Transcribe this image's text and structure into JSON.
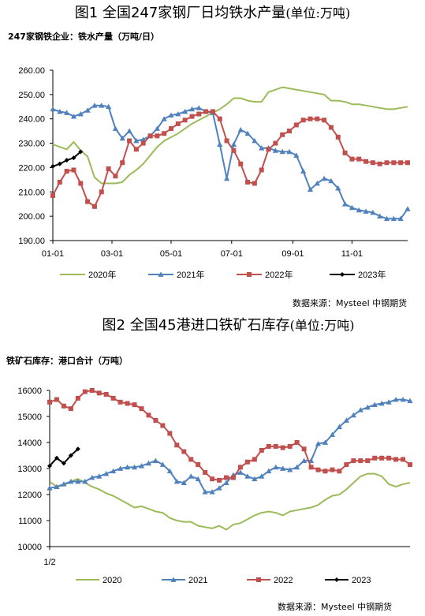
{
  "chart_data": [
    {
      "type": "line",
      "title": "图1 全国247家钢厂日均铁水产量",
      "title_unit": "(单位:万吨)",
      "subtitle": "247家钢铁企业：铁水产量（万吨/日）",
      "source": "数据来源：Mysteel 中钢期货",
      "ylim": [
        190,
        260
      ],
      "ytick_labels": [
        "260.00",
        "250.00",
        "240.00",
        "230.00",
        "220.00",
        "210.00",
        "200.00",
        "190.00"
      ],
      "xtick_labels": [
        "01-01",
        "03-01",
        "05-01",
        "07-01",
        "09-01",
        "11-01"
      ],
      "x_positions_week": [
        0,
        8.5,
        17,
        25.7,
        34.5,
        43
      ],
      "legend_position": "bottom",
      "series": [
        {
          "name": "2020年",
          "color": "#9bbb59",
          "marker": "none",
          "x": [
            0,
            1,
            2,
            3,
            4,
            5,
            6,
            7,
            8,
            9,
            10,
            11,
            12,
            13,
            14,
            15,
            16,
            17,
            18,
            19,
            20,
            21,
            22,
            23,
            24,
            25,
            26,
            27,
            28,
            29,
            30,
            31,
            32,
            33,
            34,
            35,
            36,
            37,
            38,
            39,
            40,
            41,
            42,
            43,
            44,
            45,
            46,
            47,
            48,
            49,
            50,
            51
          ],
          "y": [
            229.5,
            228.5,
            227.5,
            230.5,
            227,
            224.5,
            216,
            213.5,
            213.5,
            213.5,
            214,
            217,
            219,
            221.5,
            225,
            228.5,
            231,
            232.5,
            234,
            236,
            238,
            239.5,
            241,
            242.5,
            244,
            246,
            248.5,
            248.5,
            247.5,
            247,
            247,
            251,
            252,
            253,
            252.5,
            252,
            251.5,
            251,
            250.5,
            250,
            247.5,
            247.5,
            247,
            246,
            246,
            245.5,
            245,
            244.5,
            244,
            244,
            244.5,
            245
          ]
        },
        {
          "name": "2021年",
          "color": "#4f81bd",
          "marker": "triangle",
          "x": [
            0,
            1,
            2,
            3,
            4,
            5,
            6,
            7,
            8,
            9,
            10,
            11,
            12,
            13,
            14,
            15,
            16,
            17,
            18,
            19,
            20,
            21,
            22,
            23,
            24,
            25,
            26,
            27,
            28,
            29,
            30,
            31,
            32,
            33,
            34,
            35,
            36,
            37,
            38,
            39,
            40,
            41,
            42,
            43,
            44,
            45,
            46,
            47,
            48,
            49,
            50,
            51
          ],
          "y": [
            244,
            243,
            242.5,
            241,
            242,
            243.5,
            245.5,
            245.5,
            245,
            236,
            232,
            235,
            231,
            231.5,
            233,
            236,
            240,
            241.5,
            242,
            243,
            244,
            244.5,
            243,
            242.5,
            229.5,
            215.5,
            229.5,
            235.5,
            234,
            231,
            228,
            228,
            227,
            226.5,
            226.5,
            225,
            218.5,
            211,
            213.5,
            215.5,
            214.5,
            211.5,
            205,
            203.5,
            202.5,
            202,
            201.5,
            200,
            199,
            199,
            199,
            203
          ]
        },
        {
          "name": "2022年",
          "color": "#c0504d",
          "marker": "square",
          "x": [
            0,
            1,
            2,
            3,
            4,
            5,
            6,
            7,
            8,
            9,
            10,
            11,
            12,
            13,
            14,
            15,
            16,
            17,
            18,
            19,
            20,
            21,
            22,
            23,
            24,
            25,
            26,
            27,
            28,
            29,
            30,
            31,
            32,
            33,
            34,
            35,
            36,
            37,
            38,
            39,
            40,
            41,
            42,
            43,
            44,
            45,
            46,
            47,
            48,
            49,
            50,
            51
          ],
          "y": [
            208.5,
            214,
            218.5,
            219,
            213.5,
            206,
            204,
            210,
            219.5,
            216.5,
            222,
            231,
            227.5,
            230,
            233,
            233,
            234,
            236,
            238,
            239.5,
            241,
            242,
            243,
            243,
            240,
            231,
            227,
            221.5,
            214,
            213.5,
            219,
            227.5,
            230,
            233.5,
            235,
            237.5,
            239.5,
            240,
            240,
            239.5,
            236.5,
            232.5,
            226,
            223.5,
            223.5,
            222.5,
            222,
            221.5,
            222,
            222,
            222,
            222
          ]
        },
        {
          "name": "2023年",
          "color": "#000000",
          "marker": "diamond",
          "x": [
            0,
            1,
            2,
            3,
            4
          ],
          "y": [
            220.5,
            221.5,
            223,
            224,
            226.5
          ]
        }
      ]
    },
    {
      "type": "line",
      "title": "图2 全国45港进口铁矿石库存",
      "title_unit": "(单位:万吨)",
      "subtitle": "铁矿石库存：港口合计（万吨）",
      "source": "数据来源：Mysteel 中钢期货",
      "ylim": [
        10000,
        16000
      ],
      "ytick_labels": [
        "16000",
        "15000",
        "14000",
        "13000",
        "12000",
        "11000",
        "10000"
      ],
      "xtick_labels": [
        "1/2"
      ],
      "x_positions_week": [
        0
      ],
      "legend_position": "bottom",
      "series": [
        {
          "name": "2020",
          "color": "#9bbb59",
          "marker": "none",
          "x": [
            0,
            1,
            2,
            3,
            4,
            5,
            6,
            7,
            8,
            9,
            10,
            11,
            12,
            13,
            14,
            15,
            16,
            17,
            18,
            19,
            20,
            21,
            22,
            23,
            24,
            25,
            26,
            27,
            28,
            29,
            30,
            31,
            32,
            33,
            34,
            35,
            36,
            37,
            38,
            39,
            40,
            41,
            42,
            43,
            44,
            45,
            46,
            47,
            48,
            49,
            50,
            51
          ],
          "y": [
            12500,
            12300,
            12350,
            12500,
            12600,
            12450,
            12300,
            12200,
            12050,
            11950,
            11800,
            11650,
            11500,
            11550,
            11450,
            11350,
            11300,
            11100,
            11000,
            10950,
            10950,
            10800,
            10750,
            10700,
            10800,
            10650,
            10850,
            10900,
            11050,
            11200,
            11300,
            11350,
            11300,
            11200,
            11350,
            11400,
            11450,
            11500,
            11600,
            11800,
            11950,
            12000,
            12200,
            12450,
            12700,
            12800,
            12800,
            12700,
            12400,
            12300,
            12400,
            12450
          ]
        },
        {
          "name": "2021",
          "color": "#4f81bd",
          "marker": "triangle",
          "x": [
            0,
            1,
            2,
            3,
            4,
            5,
            6,
            7,
            8,
            9,
            10,
            11,
            12,
            13,
            14,
            15,
            16,
            17,
            18,
            19,
            20,
            21,
            22,
            23,
            24,
            25,
            26,
            27,
            28,
            29,
            30,
            31,
            32,
            33,
            34,
            35,
            36,
            37,
            38,
            39,
            40,
            41,
            42,
            43,
            44,
            45,
            46,
            47,
            48,
            49,
            50,
            51
          ],
          "y": [
            12250,
            12300,
            12400,
            12500,
            12500,
            12500,
            12650,
            12700,
            12800,
            12900,
            13000,
            13050,
            13050,
            13100,
            13200,
            13300,
            13150,
            12900,
            12500,
            12450,
            12700,
            12600,
            12100,
            12100,
            12250,
            12450,
            12750,
            12850,
            12700,
            12600,
            12700,
            12900,
            13050,
            13000,
            12950,
            13050,
            13300,
            13300,
            13950,
            14000,
            14300,
            14600,
            14850,
            15050,
            15250,
            15350,
            15450,
            15500,
            15550,
            15650,
            15650,
            15600
          ]
        },
        {
          "name": "2022",
          "color": "#c0504d",
          "marker": "square",
          "x": [
            0,
            1,
            2,
            3,
            4,
            5,
            6,
            7,
            8,
            9,
            10,
            11,
            12,
            13,
            14,
            15,
            16,
            17,
            18,
            19,
            20,
            21,
            22,
            23,
            24,
            25,
            26,
            27,
            28,
            29,
            30,
            31,
            32,
            33,
            34,
            35,
            36,
            37,
            38,
            39,
            40,
            41,
            42,
            43,
            44,
            45,
            46,
            47,
            48,
            49,
            50,
            51
          ],
          "y": [
            15550,
            15650,
            15400,
            15300,
            15700,
            15950,
            16000,
            15900,
            15850,
            15700,
            15550,
            15500,
            15450,
            15300,
            15050,
            14850,
            14650,
            14350,
            13900,
            13650,
            13350,
            13150,
            12850,
            12600,
            12550,
            12650,
            12650,
            13050,
            13250,
            13350,
            13700,
            13850,
            13850,
            13800,
            13850,
            14000,
            13750,
            13050,
            12950,
            12900,
            12950,
            12900,
            13150,
            13300,
            13300,
            13300,
            13400,
            13400,
            13400,
            13350,
            13350,
            13150
          ]
        },
        {
          "name": "2023",
          "color": "#000000",
          "marker": "diamond",
          "x": [
            0,
            1,
            2,
            3,
            4
          ],
          "y": [
            13100,
            13400,
            13200,
            13500,
            13750
          ]
        }
      ]
    }
  ]
}
